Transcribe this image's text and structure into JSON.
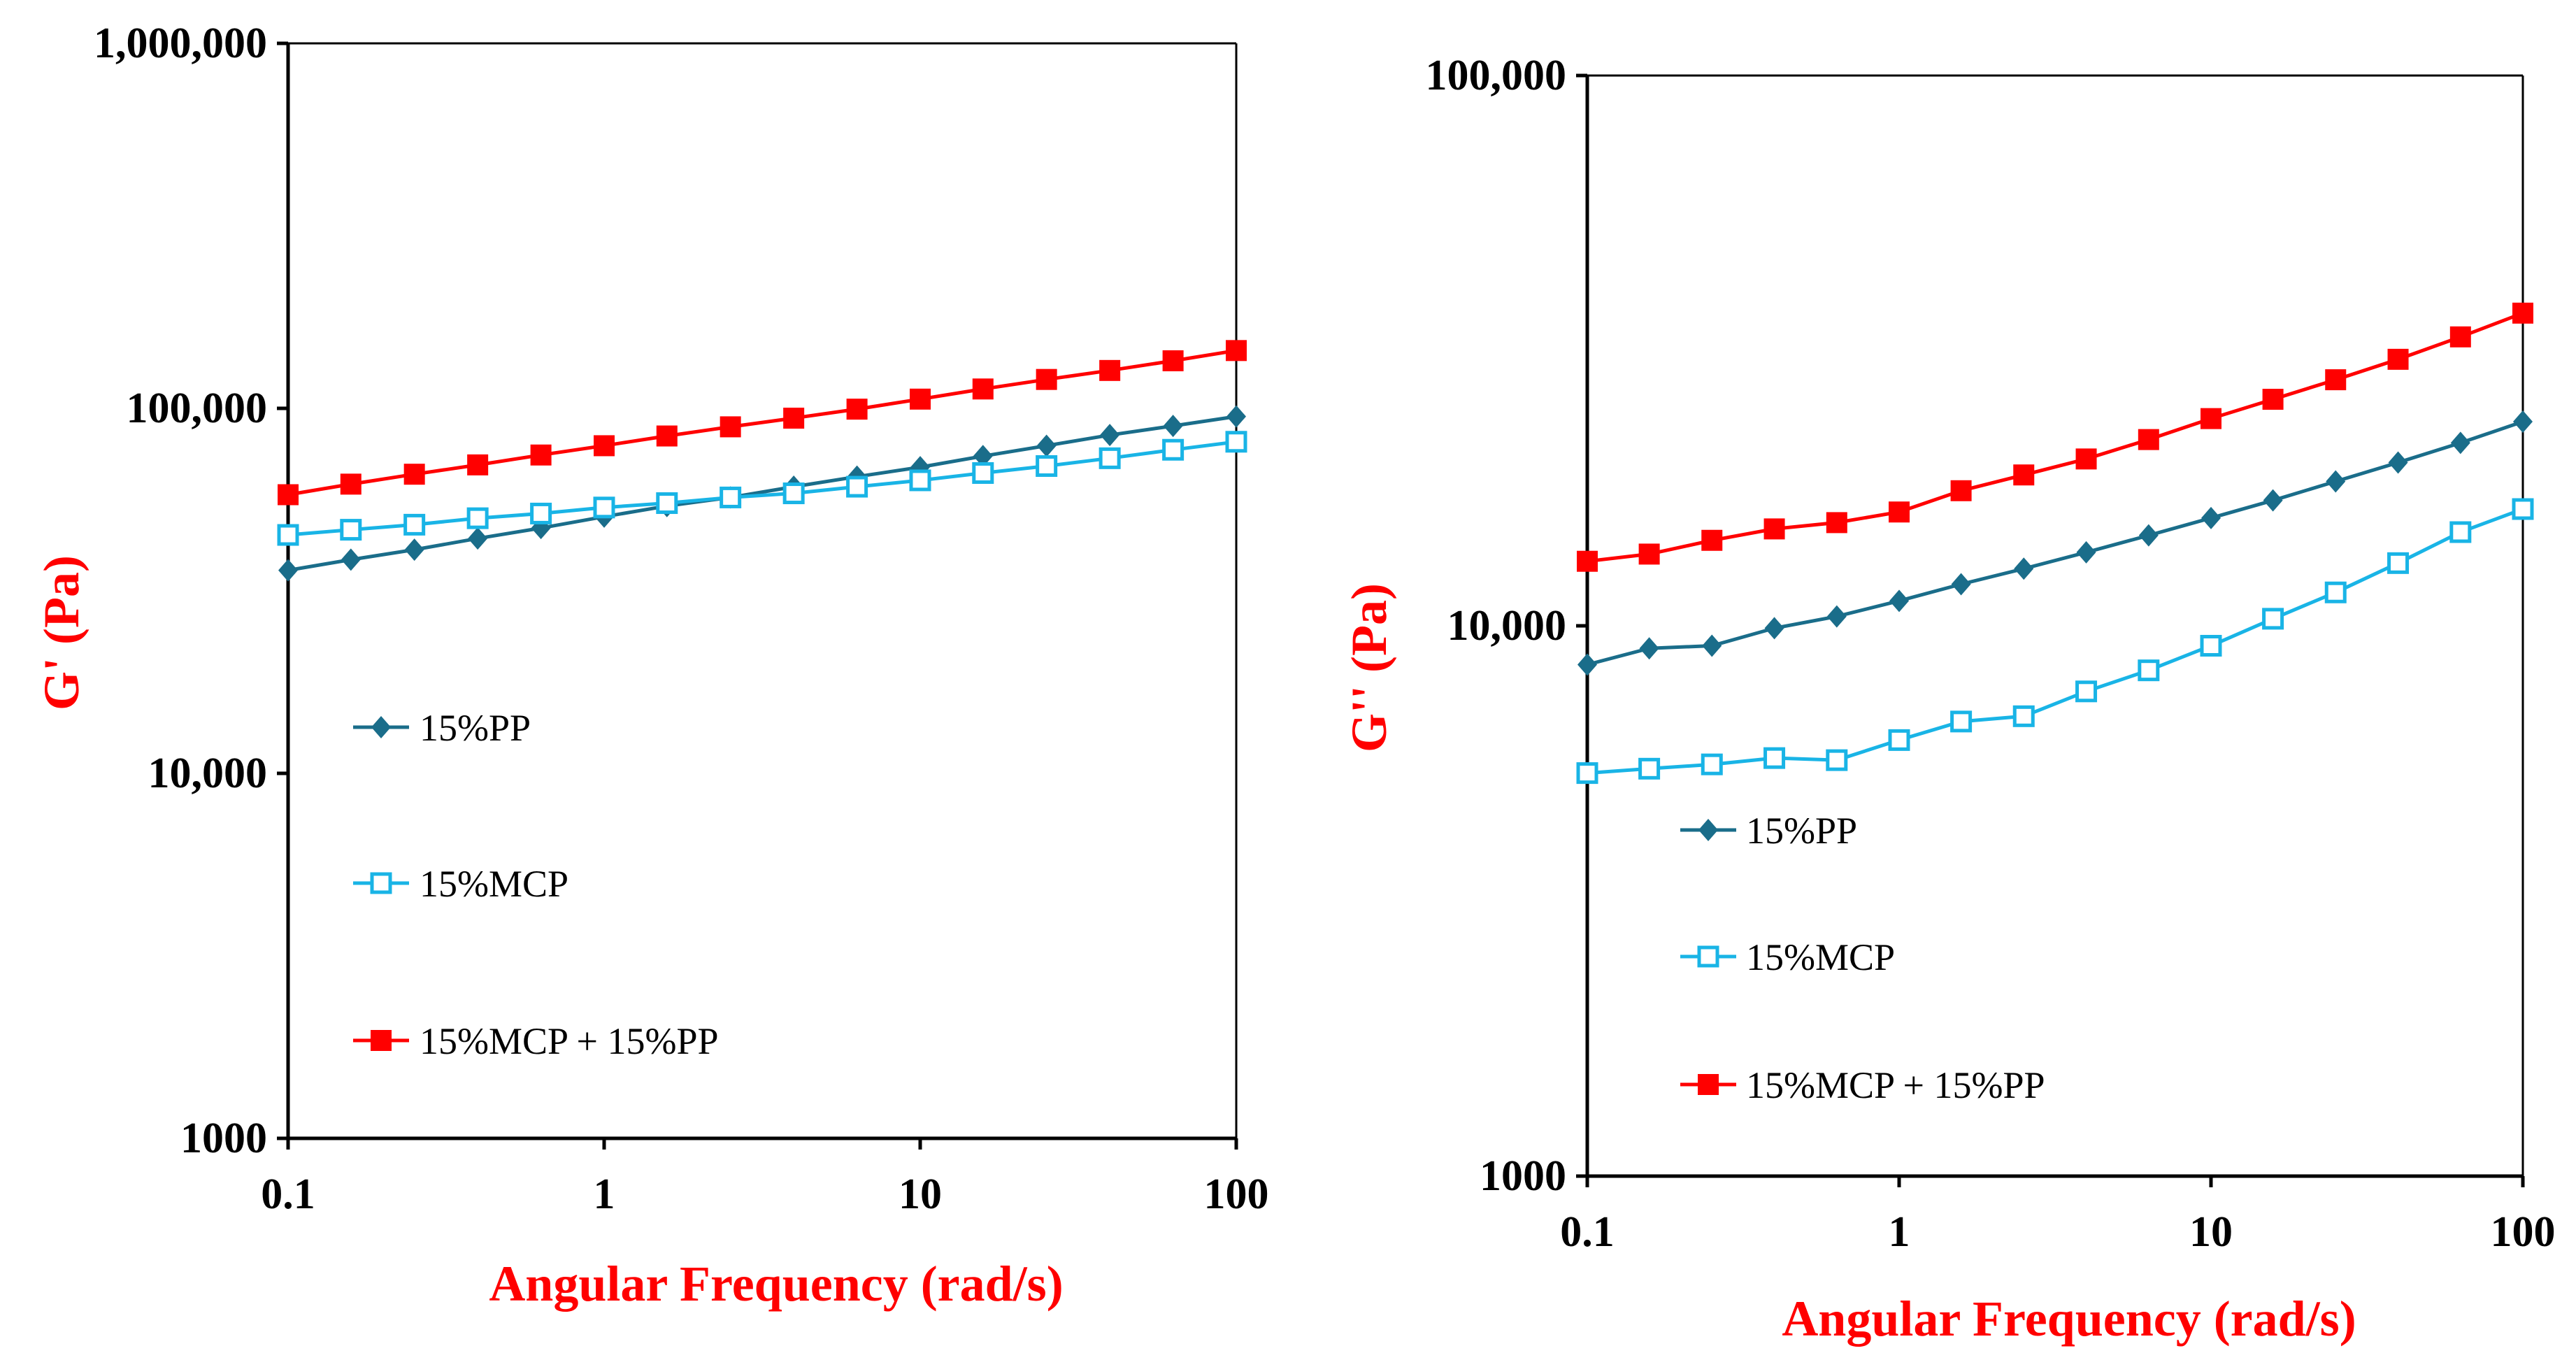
{
  "colors": {
    "pp": "#1a6d8a",
    "mcp": "#19b4e6",
    "mix": "#ff0000",
    "axis_title": "#ff0000",
    "axis": "#000000"
  },
  "chart_data": [
    {
      "type": "line",
      "xlabel": "Angular Frequency (rad/s)",
      "ylabel": "G' (Pa)",
      "xscale": "log",
      "yscale": "log",
      "xlim": [
        0.1,
        100
      ],
      "ylim": [
        1000,
        1000000
      ],
      "x_ticks": [
        "0.1",
        "1",
        "10",
        "100"
      ],
      "y_ticks": [
        "1000",
        "10,000",
        "100,000",
        "1,000,000"
      ],
      "grid": false,
      "legend_placement": "left, middle",
      "x": [
        0.1,
        0.158,
        0.251,
        0.398,
        0.631,
        1,
        1.58,
        2.51,
        3.98,
        6.31,
        10,
        15.8,
        25.1,
        39.8,
        63.1,
        100
      ],
      "series": [
        {
          "name": "15%PP",
          "marker": "diamond",
          "values": [
            36000,
            38500,
            41000,
            44000,
            47000,
            50500,
            54000,
            57000,
            61000,
            65000,
            69000,
            74000,
            79000,
            84500,
            89500,
            95000
          ]
        },
        {
          "name": "15%MCP",
          "marker": "open-square",
          "values": [
            45000,
            46500,
            48000,
            50000,
            51500,
            53500,
            55000,
            57000,
            58500,
            61000,
            63500,
            66500,
            69500,
            73000,
            77000,
            81000
          ]
        },
        {
          "name": "15%MCP + 15%PP",
          "marker": "filled-square",
          "values": [
            58000,
            62000,
            66000,
            70000,
            74500,
            79000,
            84000,
            89000,
            94000,
            99500,
            106000,
            113000,
            120000,
            127000,
            135000,
            144000
          ]
        }
      ]
    },
    {
      "type": "line",
      "xlabel": "Angular Frequency (rad/s)",
      "ylabel": "G'' (Pa)",
      "xscale": "log",
      "yscale": "log",
      "xlim": [
        0.1,
        100
      ],
      "ylim": [
        1000,
        100000
      ],
      "x_ticks": [
        "0.1",
        "1",
        "10",
        "100"
      ],
      "y_ticks": [
        "1000",
        "10,000",
        "100,000"
      ],
      "grid": false,
      "legend_placement": "left, lower-middle",
      "x": [
        0.1,
        0.158,
        0.251,
        0.398,
        0.631,
        1,
        1.58,
        2.51,
        3.98,
        6.31,
        10,
        15.8,
        25.1,
        39.8,
        63.1,
        100
      ],
      "series": [
        {
          "name": "15%PP",
          "marker": "diamond",
          "values": [
            8500,
            9100,
            9200,
            9900,
            10400,
            11100,
            11900,
            12700,
            13600,
            14600,
            15700,
            16900,
            18300,
            19800,
            21500,
            23500
          ]
        },
        {
          "name": "15%MCP",
          "marker": "open-square",
          "values": [
            5400,
            5500,
            5600,
            5750,
            5700,
            6200,
            6700,
            6850,
            7600,
            8300,
            9200,
            10300,
            11500,
            13000,
            14800,
            16300
          ]
        },
        {
          "name": "15%MCP + 15%PP",
          "marker": "filled-square",
          "values": [
            13100,
            13500,
            14300,
            15000,
            15400,
            16100,
            17600,
            18800,
            20100,
            21800,
            23800,
            25800,
            28000,
            30500,
            33500,
            37000
          ]
        }
      ]
    }
  ]
}
